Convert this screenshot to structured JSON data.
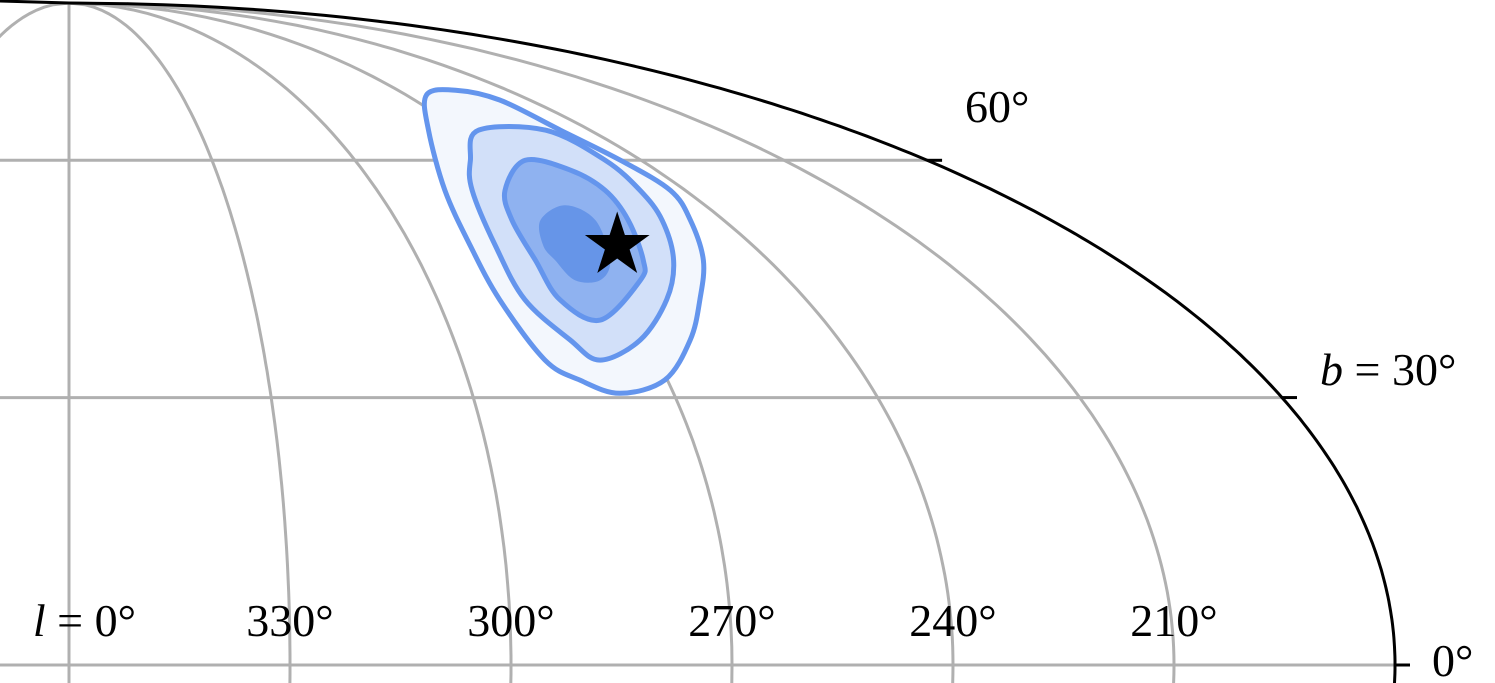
{
  "chart_data": {
    "type": "contour-skymap",
    "projection": "mollweide",
    "title": "",
    "grid": true,
    "coordinate_system": "galactic",
    "longitude_direction": "increasing-left",
    "meridians": [
      30,
      0,
      330,
      300,
      270,
      240,
      210
    ],
    "parallels": [
      0,
      30,
      60
    ],
    "boundary_meridian": 180,
    "longitude_tick_labels": [
      {
        "value": 0,
        "text": "l = 0°"
      },
      {
        "value": 330,
        "text": "330°"
      },
      {
        "value": 300,
        "text": "300°"
      },
      {
        "value": 270,
        "text": "270°"
      },
      {
        "value": 240,
        "text": "240°"
      },
      {
        "value": 210,
        "text": "210°"
      }
    ],
    "latitude_tick_labels": [
      {
        "value": 60,
        "text": "60°"
      },
      {
        "value": 30,
        "text": "b = 30°"
      },
      {
        "value": 0,
        "text": "0°"
      }
    ],
    "contours": [
      {
        "level": 1,
        "fill": "#f3f7fd",
        "stroke": "#6495ed",
        "points": [
          [
            264.6,
            69.9
          ],
          [
            254.2,
            70.7
          ],
          [
            247.8,
            69.1
          ],
          [
            246.8,
            64.4
          ],
          [
            244.3,
            60
          ],
          [
            242.9,
            55.8
          ],
          [
            246.1,
            51.8
          ],
          [
            251.2,
            46.6
          ],
          [
            257.3,
            41.7
          ],
          [
            263.2,
            36.8
          ],
          [
            270.4,
            32.05
          ],
          [
            278,
            30.5
          ],
          [
            283.2,
            32.05
          ],
          [
            287.2,
            34.4
          ],
          [
            289.9,
            41.7
          ],
          [
            289.6,
            48.5
          ],
          [
            286.8,
            55.8
          ],
          [
            277.2,
            64.4
          ]
        ]
      },
      {
        "level": 2,
        "fill": "#d2e0f9",
        "stroke": "#6495ed",
        "points": [
          [
            265.7,
            64.4
          ],
          [
            250.2,
            64.4
          ],
          [
            247.5,
            60
          ],
          [
            248.8,
            55.8
          ],
          [
            251.3,
            51.8
          ],
          [
            256.3,
            46.6
          ],
          [
            262.7,
            41.7
          ],
          [
            271,
            36.8
          ],
          [
            278.8,
            34.4
          ],
          [
            281.9,
            36.8
          ],
          [
            285.8,
            41.7
          ],
          [
            285.2,
            48.5
          ],
          [
            281.5,
            55.8
          ],
          [
            275.8,
            60
          ]
        ]
      },
      {
        "level": 3,
        "fill": "#8fb2f0",
        "stroke": "#6495ed",
        "points": [
          [
            275.1,
            55.8
          ],
          [
            264.3,
            60
          ],
          [
            257.5,
            58.6
          ],
          [
            255.6,
            55.8
          ],
          [
            257.5,
            51.8
          ],
          [
            261.5,
            46.6
          ],
          [
            264.7,
            44.1
          ],
          [
            275.5,
            39.2
          ],
          [
            280.1,
            41.7
          ],
          [
            280,
            46.6
          ],
          [
            278.8,
            51.8
          ]
        ]
      },
      {
        "level": 4,
        "fill": "#6695e8",
        "stroke": "none",
        "points": [
          [
            273.6,
            51.8
          ],
          [
            266.4,
            53.8
          ],
          [
            263.5,
            51.8
          ],
          [
            267.2,
            46.6
          ],
          [
            271.4,
            44.1
          ],
          [
            275.6,
            44.1
          ],
          [
            276.6,
            46.6
          ],
          [
            276.8,
            48.5
          ]
        ]
      }
    ],
    "marker": {
      "shape": "star",
      "l": 263.8,
      "b": 48.5,
      "color": "#000000"
    },
    "colors": {
      "grid": "#b0b0b0",
      "boundary": "#000000",
      "contour_line": "#6495ed"
    }
  }
}
